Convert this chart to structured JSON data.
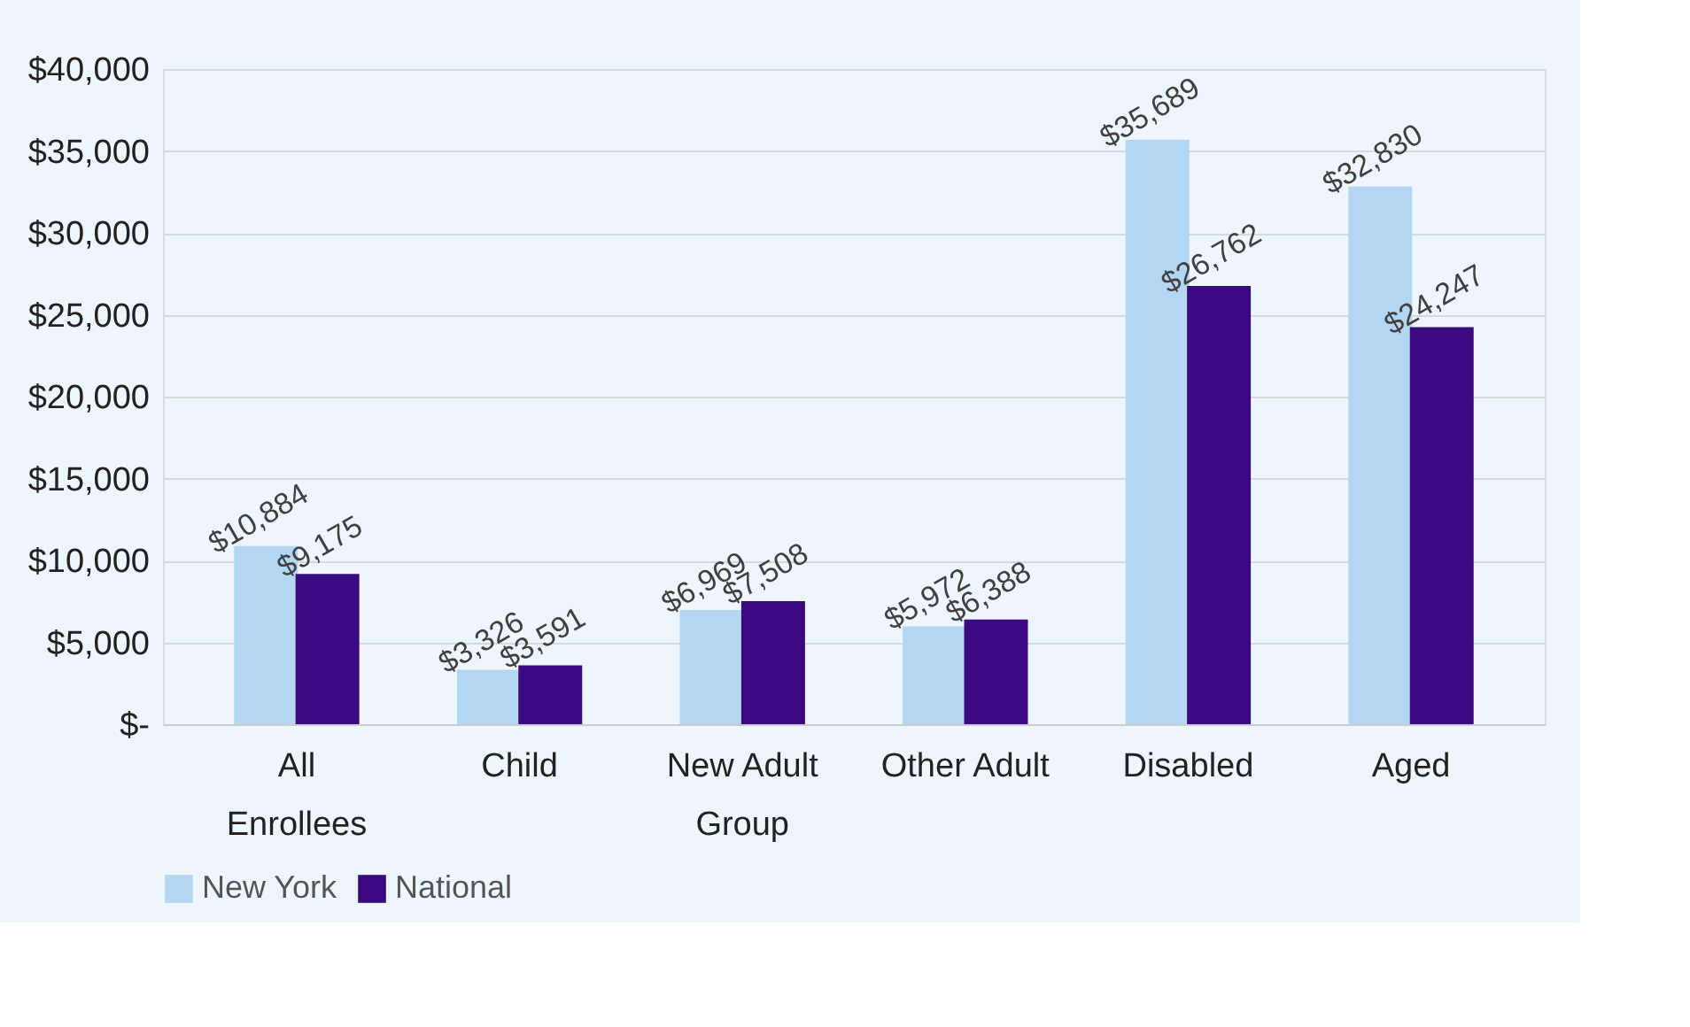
{
  "chart_data": {
    "type": "bar",
    "categories": [
      "All Enrollees",
      "Child",
      "New Adult Group",
      "Other Adult",
      "Disabled",
      "Aged"
    ],
    "series": [
      {
        "name": "New York",
        "color": "#b3d6f2",
        "values": [
          10884,
          3326,
          6969,
          5972,
          35689,
          32830
        ],
        "value_labels": [
          "$10,884",
          "$3,326",
          "$6,969",
          "$5,972",
          "$35,689",
          "$32,830"
        ]
      },
      {
        "name": "National",
        "color": "#3c0a80",
        "values": [
          9175,
          3591,
          7508,
          6388,
          26762,
          24247
        ],
        "value_labels": [
          "$9,175",
          "$3,591",
          "$7,508",
          "$6,388",
          "$26,762",
          "$24,247"
        ]
      }
    ],
    "ylim": [
      0,
      40000
    ],
    "yticks": [
      {
        "value": 0,
        "label": "$-"
      },
      {
        "value": 5000,
        "label": "$5,000"
      },
      {
        "value": 10000,
        "label": "$10,000"
      },
      {
        "value": 15000,
        "label": "$15,000"
      },
      {
        "value": 20000,
        "label": "$20,000"
      },
      {
        "value": 25000,
        "label": "$25,000"
      },
      {
        "value": 30000,
        "label": "$30,000"
      },
      {
        "value": 35000,
        "label": "$35,000"
      },
      {
        "value": 40000,
        "label": "$40,000"
      }
    ],
    "grid": "y",
    "legend": "bottom"
  }
}
